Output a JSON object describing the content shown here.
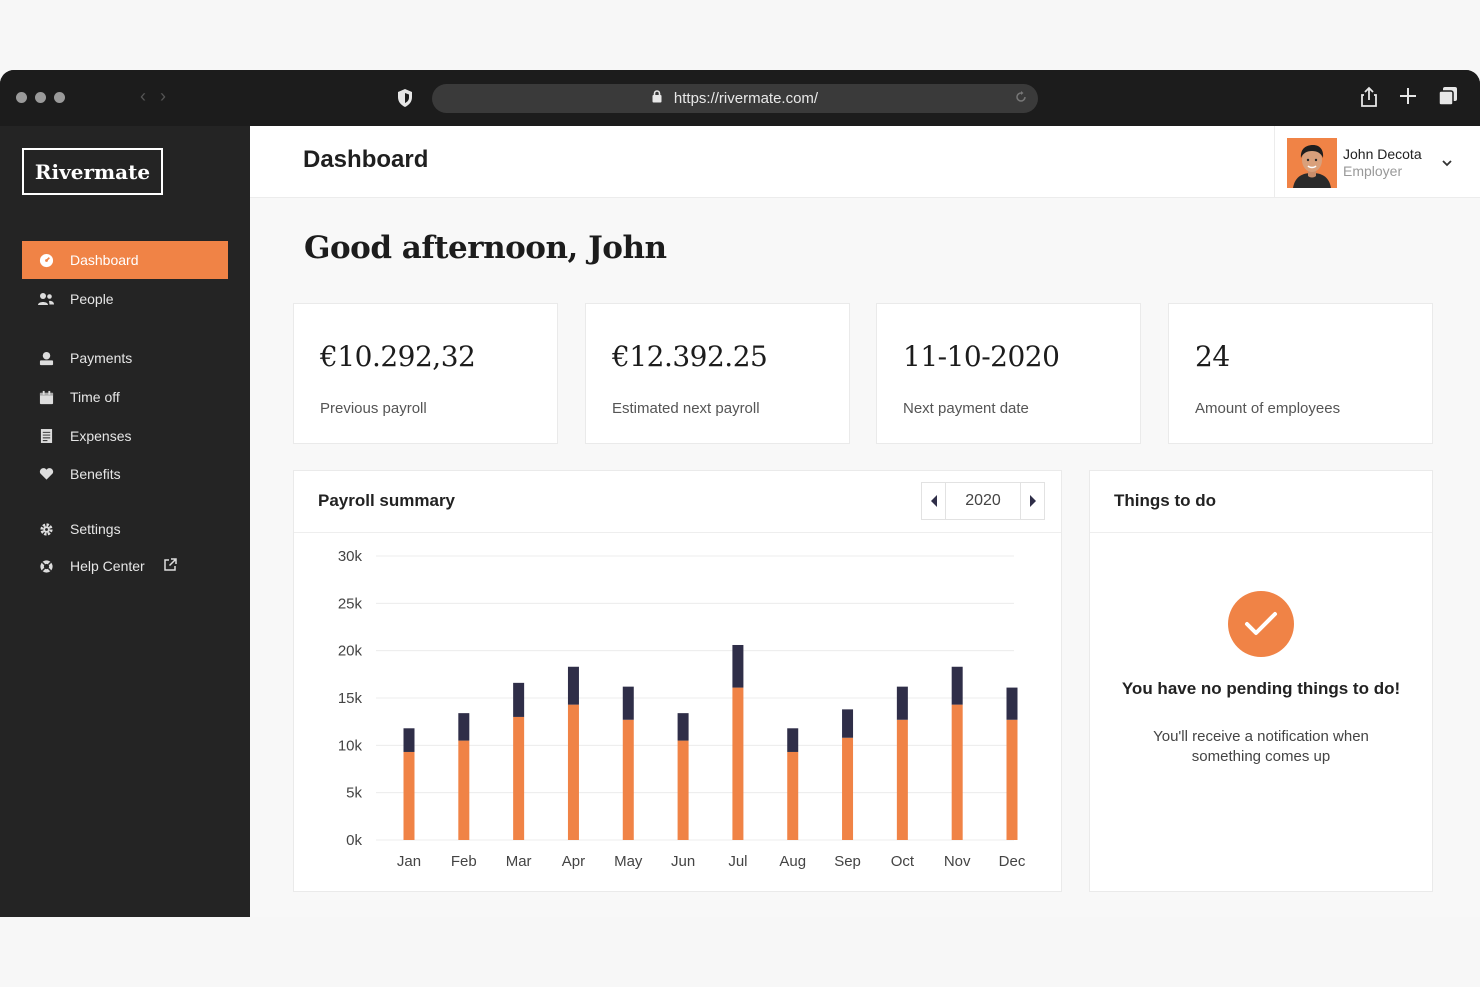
{
  "browser": {
    "url": "https://rivermate.com/"
  },
  "sidebar": {
    "logo": "Rivermate",
    "items": [
      {
        "label": "Dashboard",
        "icon": "dashboard-icon",
        "active": true
      },
      {
        "label": "People",
        "icon": "people-icon"
      },
      {
        "label": "Payments",
        "icon": "payments-icon"
      },
      {
        "label": "Time off",
        "icon": "calendar-icon"
      },
      {
        "label": "Expenses",
        "icon": "receipt-icon"
      },
      {
        "label": "Benefits",
        "icon": "heart-icon"
      },
      {
        "label": "Settings",
        "icon": "gear-icon"
      },
      {
        "label": "Help Center",
        "icon": "lifebuoy-icon"
      }
    ]
  },
  "header": {
    "title": "Dashboard",
    "user": {
      "name": "John Decota",
      "role": "Employer"
    }
  },
  "greeting": "Good afternoon, John",
  "stats": [
    {
      "value": "€10.292,32",
      "label": "Previous payroll"
    },
    {
      "value": "€12.392.25",
      "label": "Estimated next payroll"
    },
    {
      "value": "11-10-2020",
      "label": "Next payment date"
    },
    {
      "value": "24",
      "label": "Amount of employees"
    }
  ],
  "payroll": {
    "title": "Payroll summary",
    "year": "2020"
  },
  "todo": {
    "title": "Things to do",
    "empty_title": "You have no pending things to do!",
    "empty_sub": "You'll receive a notification when something comes up"
  },
  "colors": {
    "accent": "#f08346",
    "bar_dark": "#2f2e48",
    "sidebar_bg": "#242424"
  },
  "chart_data": {
    "type": "bar",
    "stacked": true,
    "categories": [
      "Jan",
      "Feb",
      "Mar",
      "Apr",
      "May",
      "Jun",
      "Jul",
      "Aug",
      "Sep",
      "Oct",
      "Nov",
      "Dec"
    ],
    "series": [
      {
        "values": [
          9.3,
          10.5,
          13,
          14.3,
          12.7,
          10.5,
          16.1,
          9.3,
          10.8,
          12.7,
          14.3,
          12.7
        ]
      },
      {
        "values": [
          2.5,
          2.9,
          3.6,
          4,
          3.5,
          2.9,
          4.5,
          2.5,
          3,
          3.5,
          4,
          3.4
        ]
      }
    ],
    "yticks": [
      "0k",
      "5k",
      "10k",
      "15k",
      "20k",
      "25k",
      "30k"
    ],
    "ylim": [
      0,
      30
    ],
    "grid": true
  }
}
